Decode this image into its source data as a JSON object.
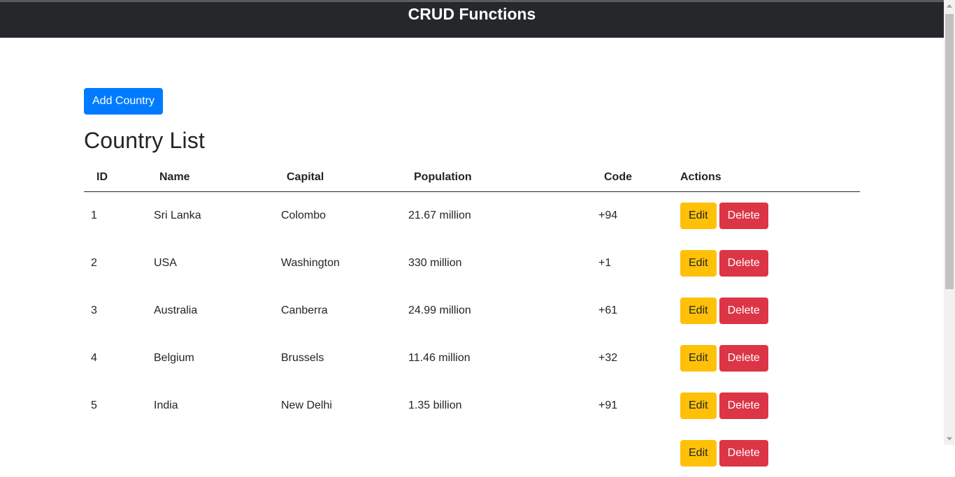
{
  "header": {
    "title": "CRUD Functions"
  },
  "toolbar": {
    "add_label": "Add Country"
  },
  "main": {
    "title": "Country List"
  },
  "table": {
    "columns": [
      "ID",
      "Name",
      "Capital",
      "Population",
      "Code",
      "Actions"
    ],
    "edit_label": "Edit",
    "delete_label": "Delete",
    "rows": [
      {
        "id": "1",
        "name": "Sri Lanka",
        "capital": "Colombo",
        "population": "21.67 million",
        "code": "+94"
      },
      {
        "id": "2",
        "name": "USA",
        "capital": "Washington",
        "population": "330 million",
        "code": "+1"
      },
      {
        "id": "3",
        "name": "Australia",
        "capital": "Canberra",
        "population": "24.99 million",
        "code": "+61"
      },
      {
        "id": "4",
        "name": "Belgium",
        "capital": "Brussels",
        "population": "11.46 million",
        "code": "+32"
      },
      {
        "id": "5",
        "name": "India",
        "capital": "New Delhi",
        "population": "1.35 billion",
        "code": "+91"
      },
      {
        "id": "",
        "name": "",
        "capital": "",
        "population": "",
        "code": ""
      }
    ]
  },
  "colors": {
    "header_bg": "#26272b",
    "primary": "#007bff",
    "warning": "#ffc107",
    "danger": "#dc3545"
  }
}
